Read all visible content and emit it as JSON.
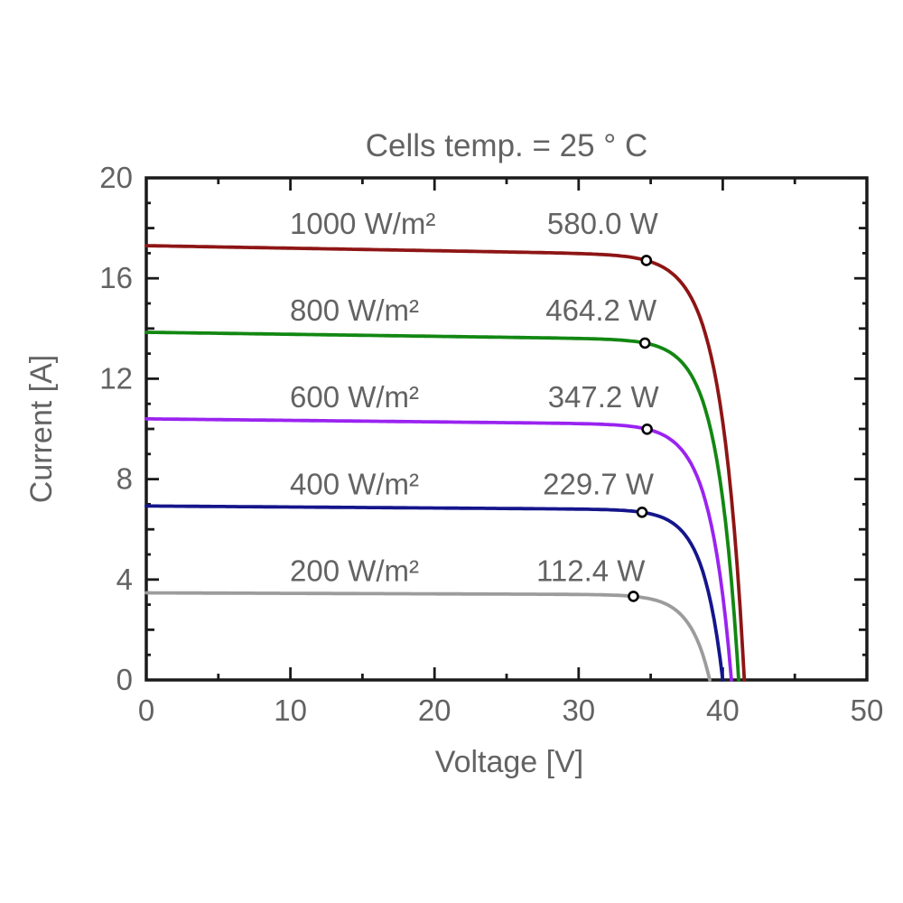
{
  "chart_data": {
    "type": "line",
    "title": "Cells temp. = 25 ° C",
    "xlabel": "Voltage [V]",
    "ylabel": "Current [A]",
    "xlim": [
      0,
      50
    ],
    "ylim": [
      0,
      20
    ],
    "x_major_ticks": [
      0,
      10,
      20,
      30,
      40,
      50
    ],
    "x_minor_ticks": [
      5,
      15,
      25,
      35,
      45
    ],
    "y_major_ticks": [
      0,
      4,
      8,
      12,
      16,
      20
    ],
    "y_mid_ticks": [
      2,
      6,
      10,
      14,
      18
    ],
    "y_minor_ticks": [
      1,
      3,
      5,
      7,
      9,
      11,
      13,
      15,
      17,
      19
    ],
    "grid": false,
    "box": true,
    "legend_position": "inline labels above each curve",
    "axis_color": "#1a1a1a",
    "text_color": "#636363",
    "marker": {
      "shape": "circle",
      "fill": "#ffffff",
      "edge": "#000000",
      "meaning": "maximum power point"
    },
    "series": [
      {
        "irradiance_label": "1000 W/m²",
        "power_label": "580.0 W",
        "color": "#8e1515",
        "isc_a": 17.3,
        "voc_v": 41.5,
        "slope_a_per_v": 0.01,
        "mpp_v": 34.7,
        "mpp_i_a": 16.71,
        "mpp_power_w": 580.0
      },
      {
        "irradiance_label": "800 W/m²",
        "power_label": "464.2 W",
        "color": "#128712",
        "isc_a": 13.85,
        "voc_v": 41.1,
        "slope_a_per_v": 0.008,
        "mpp_v": 34.6,
        "mpp_i_a": 13.42,
        "mpp_power_w": 464.2
      },
      {
        "irradiance_label": "600 W/m²",
        "power_label": "347.2 W",
        "color": "#9a23f0",
        "isc_a": 10.4,
        "voc_v": 40.6,
        "slope_a_per_v": 0.006,
        "mpp_v": 34.75,
        "mpp_i_a": 9.99,
        "mpp_power_w": 347.2
      },
      {
        "irradiance_label": "400 W/m²",
        "power_label": "229.7 W",
        "color": "#15158c",
        "isc_a": 6.93,
        "voc_v": 40.0,
        "slope_a_per_v": 0.004,
        "mpp_v": 34.4,
        "mpp_i_a": 6.68,
        "mpp_power_w": 229.7
      },
      {
        "irradiance_label": "200 W/m²",
        "power_label": "112.4 W",
        "color": "#9c9c9c",
        "isc_a": 3.47,
        "voc_v": 39.1,
        "slope_a_per_v": 0.002,
        "mpp_v": 33.8,
        "mpp_i_a": 3.33,
        "mpp_power_w": 112.4
      }
    ]
  }
}
